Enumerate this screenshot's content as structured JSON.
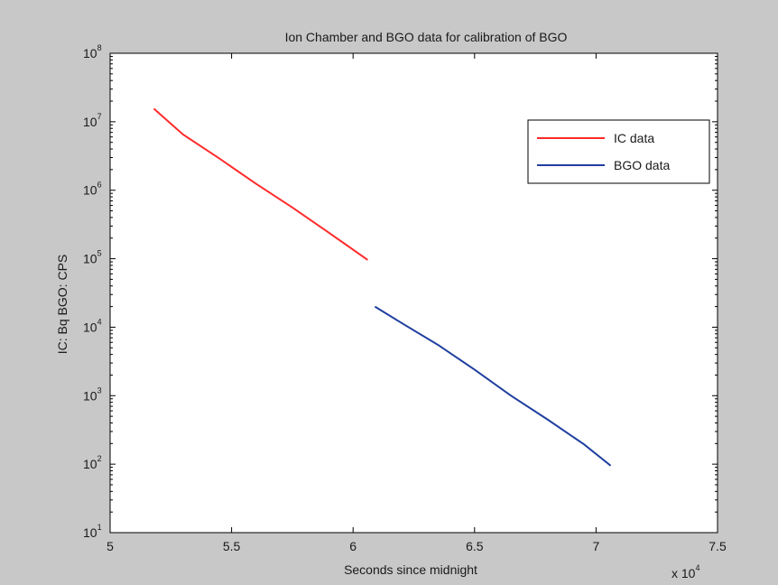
{
  "chart_data": {
    "type": "line",
    "title": "Ion Chamber and BGO data for calibration of BGO",
    "xlabel": "Seconds since midnight",
    "ylabel": "IC: Bq    BGO: CPS",
    "x_multiplier": "x 10",
    "x_multiplier_exp": "4",
    "xlim": [
      50000,
      75000
    ],
    "ylim": [
      10,
      100000000
    ],
    "yscale": "log",
    "x_ticks": [
      {
        "value": 50000,
        "label": "5"
      },
      {
        "value": 55000,
        "label": "5.5"
      },
      {
        "value": 60000,
        "label": "6"
      },
      {
        "value": 65000,
        "label": "6.5"
      },
      {
        "value": 70000,
        "label": "7"
      },
      {
        "value": 75000,
        "label": "7.5"
      }
    ],
    "y_ticks": [
      {
        "value": 10,
        "base": "10",
        "exp": "1"
      },
      {
        "value": 100,
        "base": "10",
        "exp": "2"
      },
      {
        "value": 1000,
        "base": "10",
        "exp": "3"
      },
      {
        "value": 10000,
        "base": "10",
        "exp": "4"
      },
      {
        "value": 100000,
        "base": "10",
        "exp": "5"
      },
      {
        "value": 1000000,
        "base": "10",
        "exp": "6"
      },
      {
        "value": 10000000,
        "base": "10",
        "exp": "7"
      },
      {
        "value": 100000000,
        "base": "10",
        "exp": "8"
      }
    ],
    "grid": false,
    "legend_position": "top-right",
    "series": [
      {
        "name": "IC data",
        "color": "#ff2a2a",
        "points": [
          [
            51800,
            15500000
          ],
          [
            53000,
            6500000
          ],
          [
            54500,
            2900000
          ],
          [
            56000,
            1250000
          ],
          [
            57500,
            560000
          ],
          [
            59000,
            240000
          ],
          [
            60600,
            96000
          ]
        ]
      },
      {
        "name": "BGO data",
        "color": "#1f3f9f",
        "points": [
          [
            60900,
            20000
          ],
          [
            62000,
            11500
          ],
          [
            63500,
            5500
          ],
          [
            65000,
            2400
          ],
          [
            66500,
            1000
          ],
          [
            68000,
            450
          ],
          [
            69500,
            195
          ],
          [
            70600,
            95
          ]
        ]
      }
    ]
  }
}
